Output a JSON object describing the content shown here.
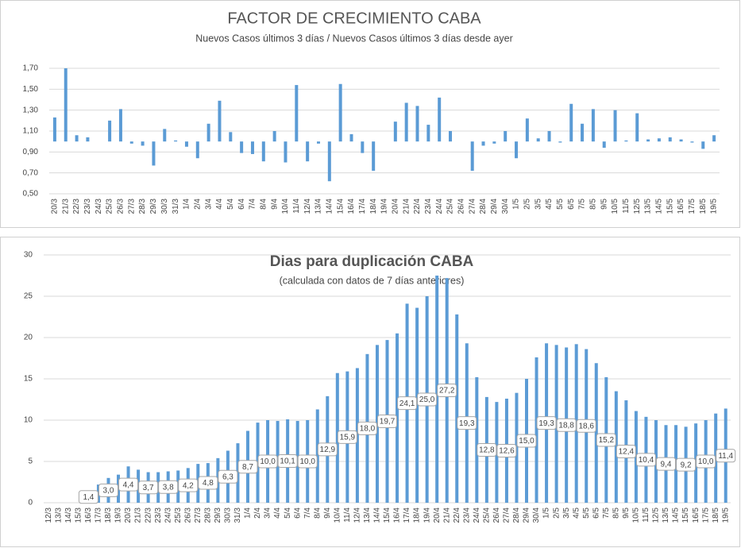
{
  "chart_data": [
    {
      "type": "bar",
      "title": "FACTOR DE CRECIMIENTO CABA",
      "subtitle": "Nuevos Casos últimos 3 días / Nuevos Casos últimos 3 días desde ayer",
      "categories": [
        "20/3",
        "21/3",
        "22/3",
        "23/3",
        "24/3",
        "25/3",
        "26/3",
        "27/3",
        "28/3",
        "29/3",
        "30/3",
        "31/3",
        "1/4",
        "2/4",
        "3/4",
        "4/4",
        "5/4",
        "6/4",
        "7/4",
        "8/4",
        "9/4",
        "10/4",
        "11/4",
        "12/4",
        "13/4",
        "14/4",
        "15/4",
        "16/4",
        "17/4",
        "18/4",
        "19/4",
        "20/4",
        "21/4",
        "22/4",
        "23/4",
        "24/4",
        "25/4",
        "26/4",
        "27/4",
        "28/4",
        "29/4",
        "30/4",
        "1/5",
        "2/5",
        "3/5",
        "4/5",
        "5/5",
        "6/5",
        "7/5",
        "8/5",
        "9/5",
        "10/5",
        "11/5",
        "12/5",
        "13/5",
        "14/5",
        "15/5",
        "16/5",
        "17/5",
        "18/5",
        "19/5"
      ],
      "values": [
        1.23,
        1.7,
        1.06,
        1.04,
        1.0,
        1.2,
        1.31,
        0.98,
        0.96,
        0.77,
        1.12,
        1.01,
        0.95,
        0.84,
        1.17,
        1.39,
        1.09,
        0.89,
        0.88,
        0.81,
        1.1,
        0.8,
        1.54,
        0.81,
        0.98,
        0.62,
        1.55,
        1.07,
        0.89,
        0.72,
        1.0,
        1.19,
        1.37,
        1.34,
        1.16,
        1.42,
        1.1,
        1.0,
        0.72,
        0.96,
        0.98,
        1.1,
        0.84,
        1.22,
        1.03,
        1.1,
        0.99,
        1.36,
        1.17,
        1.31,
        0.94,
        1.3,
        1.01,
        1.27,
        1.02,
        1.03,
        1.04,
        1.02,
        0.99,
        0.93,
        1.06
      ],
      "color": "#5b9bd5",
      "bar_origin": 1,
      "ylim": [
        0.5,
        1.7
      ],
      "yticks": [
        {
          "value": 0.5,
          "label": "0,50"
        },
        {
          "value": 0.7,
          "label": "0,70"
        },
        {
          "value": 0.9,
          "label": "0,90"
        },
        {
          "value": 1.1,
          "label": "1,10"
        },
        {
          "value": 1.3,
          "label": "1,30"
        },
        {
          "value": 1.5,
          "label": "1,50"
        },
        {
          "value": 1.7,
          "label": "1,70"
        }
      ],
      "grid": true
    },
    {
      "type": "bar",
      "title": "Dias para duplicación CABA",
      "subtitle": "(calculada con datos de 7 días anteriores)",
      "categories": [
        "12/3",
        "13/3",
        "14/3",
        "15/3",
        "16/3",
        "17/3",
        "18/3",
        "19/3",
        "20/3",
        "21/3",
        "22/3",
        "23/3",
        "24/3",
        "25/3",
        "26/3",
        "27/3",
        "28/3",
        "29/3",
        "30/3",
        "31/3",
        "1/4",
        "2/4",
        "3/4",
        "4/4",
        "5/4",
        "6/4",
        "7/4",
        "8/4",
        "9/4",
        "10/4",
        "11/4",
        "12/4",
        "13/4",
        "14/4",
        "15/4",
        "16/4",
        "17/4",
        "18/4",
        "19/4",
        "20/4",
        "21/4",
        "22/4",
        "23/4",
        "24/4",
        "25/4",
        "26/4",
        "27/4",
        "28/4",
        "29/4",
        "30/4",
        "1/5",
        "2/5",
        "3/5",
        "4/5",
        "5/5",
        "6/5",
        "7/5",
        "8/5",
        "9/5",
        "10/5",
        "11/5",
        "12/5",
        "13/5",
        "14/5",
        "15/5",
        "16/5",
        "17/5",
        "18/5",
        "19/5"
      ],
      "values": [
        null,
        null,
        null,
        null,
        1.4,
        2.2,
        3.0,
        3.4,
        4.4,
        4.0,
        3.7,
        3.7,
        3.8,
        3.9,
        4.2,
        4.7,
        4.8,
        5.4,
        6.3,
        7.2,
        8.7,
        9.7,
        10.0,
        9.9,
        10.1,
        9.9,
        10.0,
        11.3,
        12.9,
        15.7,
        15.9,
        16.3,
        18.0,
        19.1,
        19.7,
        20.5,
        24.1,
        23.6,
        25.0,
        27.5,
        27.2,
        22.8,
        19.3,
        15.2,
        12.8,
        12.2,
        12.6,
        13.3,
        15.0,
        17.6,
        19.3,
        19.1,
        18.8,
        19.2,
        18.6,
        16.9,
        15.2,
        13.5,
        12.4,
        11.1,
        10.4,
        10.0,
        9.4,
        9.4,
        9.2,
        9.6,
        10.0,
        10.8,
        11.4
      ],
      "value_labels": [
        null,
        null,
        null,
        null,
        "1,4",
        null,
        "3,0",
        null,
        "4,4",
        null,
        "3,7",
        null,
        "3,8",
        null,
        "4,2",
        null,
        "4,8",
        null,
        "6,3",
        null,
        "8,7",
        null,
        "10,0",
        null,
        "10,1",
        null,
        "10,0",
        null,
        "12,9",
        null,
        "15,9",
        null,
        "18,0",
        null,
        "19,7",
        null,
        "24,1",
        null,
        "25,0",
        null,
        "27,2",
        null,
        "19,3",
        null,
        "12,8",
        null,
        "12,6",
        null,
        "15,0",
        null,
        "19,3",
        null,
        "18,8",
        null,
        "18,6",
        null,
        "15,2",
        null,
        "12,4",
        null,
        "10,4",
        null,
        "9,4",
        null,
        "9,2",
        null,
        "10,0",
        null,
        "11,4"
      ],
      "color": "#5b9bd5",
      "ylim": [
        0,
        30
      ],
      "yticks": [
        0,
        5,
        10,
        15,
        20,
        25,
        30
      ],
      "grid": true
    }
  ]
}
